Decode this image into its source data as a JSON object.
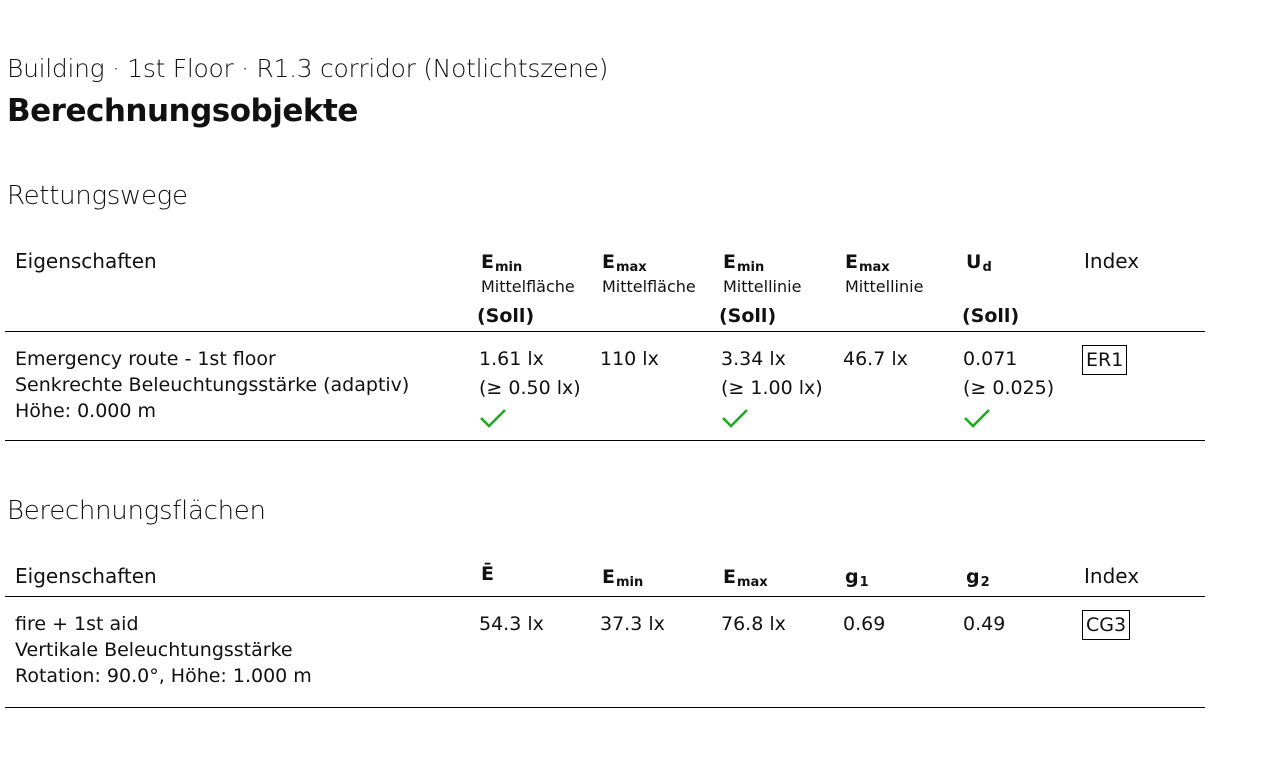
{
  "header": {
    "breadcrumb": "Building · 1st Floor · R1.3 corridor (Notlichtszene)",
    "title": "Berechnungsobjekte"
  },
  "escape_routes": {
    "heading": "Rettungswege",
    "columns": {
      "properties": "Eigenschaften",
      "emin_area": {
        "sym": "E",
        "sub": "min",
        "label": "Mittelfläche",
        "soll": "(Soll)"
      },
      "emax_area": {
        "sym": "E",
        "sub": "max",
        "label": "Mittelfläche"
      },
      "emin_line": {
        "sym": "E",
        "sub": "min",
        "label": "Mittellinie",
        "soll": "(Soll)"
      },
      "emax_line": {
        "sym": "E",
        "sub": "max",
        "label": "Mittellinie"
      },
      "ud": {
        "sym": "U",
        "sub": "d",
        "soll": "(Soll)"
      },
      "index": "Index"
    },
    "rows": [
      {
        "name": "Emergency route - 1st floor",
        "type": "Senkrechte Beleuchtungsstärke (adaptiv)",
        "height": "Höhe: 0.000 m",
        "emin_area": "1.61 lx",
        "emin_area_req": "(≥ 0.50 lx)",
        "emax_area": "110 lx",
        "emin_line": "3.34 lx",
        "emin_line_req": "(≥ 1.00 lx)",
        "emax_line": "46.7 lx",
        "ud": "0.071",
        "ud_req": "(≥ 0.025)",
        "index": "ER1",
        "check_color": "#1faa1f"
      }
    ]
  },
  "calc_surfaces": {
    "heading": "Berechnungsflächen",
    "columns": {
      "properties": "Eigenschaften",
      "eavg": "Ē",
      "emin": {
        "sym": "E",
        "sub": "min"
      },
      "emax": {
        "sym": "E",
        "sub": "max"
      },
      "g1": {
        "sym": "g",
        "sub": "1"
      },
      "g2": {
        "sym": "g",
        "sub": "2"
      },
      "index": "Index"
    },
    "rows": [
      {
        "name": "fire + 1st aid",
        "type": "Vertikale Beleuchtungsstärke",
        "params": "Rotation: 90.0°, Höhe: 1.000 m",
        "eavg": "54.3 lx",
        "emin": "37.3 lx",
        "emax": "76.8 lx",
        "g1": "0.69",
        "g2": "0.49",
        "index": "CG3"
      }
    ]
  }
}
